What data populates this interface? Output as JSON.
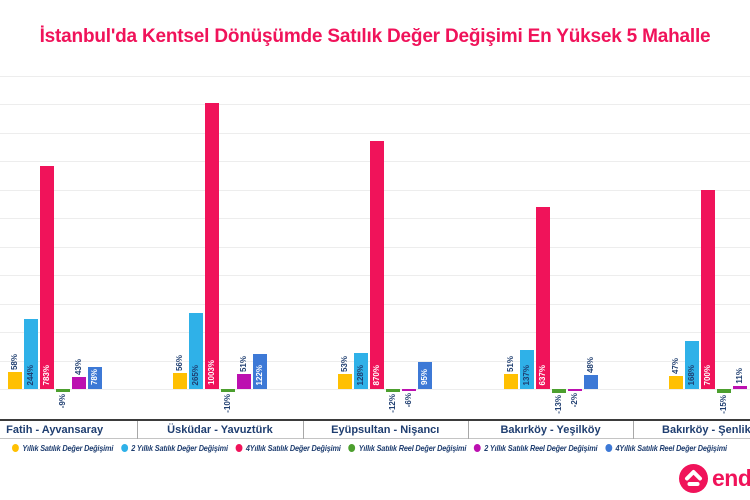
{
  "title": {
    "text": "İstanbul'da Kentsel Dönüşümde Satılık Değer Değişimi En Yüksek 5 Mahalle"
  },
  "colors": {
    "title": "#F0135A",
    "label_navy": "#1F3E70",
    "grid": "#ededed"
  },
  "chart_data": {
    "type": "bar",
    "title": "İstanbul'da Kentsel Dönüşümde Satılık Değer Değişimi En Yüksek 5 Mahalle",
    "categories": [
      "Fatih - Ayvansaray",
      "Üsküdar - Yavuztürk",
      "Eyüpsultan - Nişancı",
      "Bakırköy - Yeşilköy",
      "Bakırköy - Şenlikköy"
    ],
    "series": [
      {
        "name": "Yıllık Satılık Değer Değişimi",
        "color": "#FFC002",
        "inside_label_color": null,
        "values": [
          58,
          56,
          53,
          51,
          47
        ]
      },
      {
        "name": "2 Yıllık Satılık Değer Değişimi",
        "color": "#2FB1E8",
        "inside_label_color": "#1F3E70",
        "values": [
          244,
          265,
          128,
          137,
          168
        ]
      },
      {
        "name": "4Yıllık Satılık Değer Değişimi",
        "color": "#F0135A",
        "inside_label_color": "#FFFFFF",
        "values": [
          783,
          1003,
          870,
          637,
          700
        ]
      },
      {
        "name": "Yıllık Satılık Reel Değer Değişimi",
        "color": "#4C9F2E",
        "inside_label_color": null,
        "values": [
          -9,
          -10,
          -12,
          -13,
          -15
        ]
      },
      {
        "name": "2 Yıllık Satılık Reel Değer Değişimi",
        "color": "#BC10B0",
        "inside_label_color": null,
        "values": [
          43,
          51,
          -6,
          -2,
          11
        ]
      },
      {
        "name": "4Yıllık Satılık Reel Değer Değişimi",
        "color": "#3D79D6",
        "inside_label_color": "#FFFFFF",
        "values": [
          78,
          122,
          95,
          48,
          null
        ]
      }
    ],
    "value_suffix": "%",
    "ylim": [
      -100,
      1100
    ],
    "grid_step": 100,
    "grid": true,
    "y_axis_labels_visible": false,
    "legend_position": "bottom",
    "value_labels": "rotated-90"
  },
  "logo": {
    "text": "end",
    "color": "#F0135A",
    "icon": "home-up-arrow-icon"
  }
}
